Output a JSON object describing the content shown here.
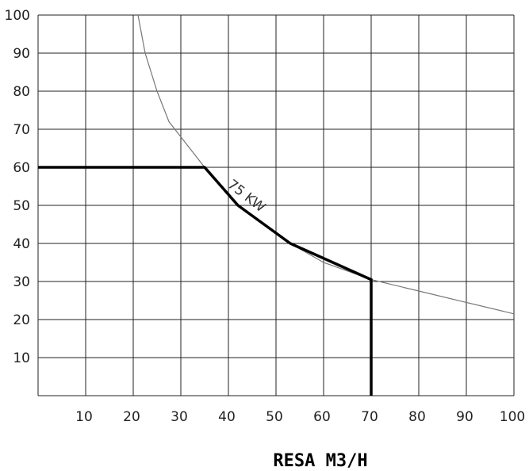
{
  "chart_data": {
    "type": "line",
    "xlabel": "RESA M3/H",
    "ylabel": "",
    "title": "",
    "xlim": [
      0,
      100
    ],
    "ylim": [
      0,
      100
    ],
    "x_ticks": [
      "10",
      "20",
      "30",
      "40",
      "50",
      "60",
      "70",
      "80",
      "90",
      "100"
    ],
    "y_ticks": [
      "10",
      "20",
      "30",
      "40",
      "50",
      "60",
      "70",
      "80",
      "90",
      "100"
    ],
    "grid": true,
    "series": [
      {
        "style": "thin curve",
        "color": "#777777",
        "points": [
          [
            21,
            100
          ],
          [
            22.5,
            90
          ],
          [
            25,
            80
          ],
          [
            27.5,
            72
          ],
          [
            30,
            68
          ],
          [
            35,
            60
          ],
          [
            42,
            50
          ],
          [
            53,
            40
          ],
          [
            60,
            35
          ],
          [
            70,
            30.5
          ],
          [
            80,
            27.5
          ],
          [
            90,
            24.5
          ],
          [
            100,
            21.5
          ]
        ]
      },
      {
        "style": "bold line",
        "color": "#000000",
        "points": [
          [
            0,
            60
          ],
          [
            35,
            60
          ],
          [
            42,
            50
          ],
          [
            53,
            40
          ],
          [
            70,
            30.5
          ],
          [
            70,
            0
          ]
        ]
      }
    ],
    "annotations": [
      {
        "text": "75 KW",
        "x": 40,
        "y": 53
      }
    ]
  }
}
